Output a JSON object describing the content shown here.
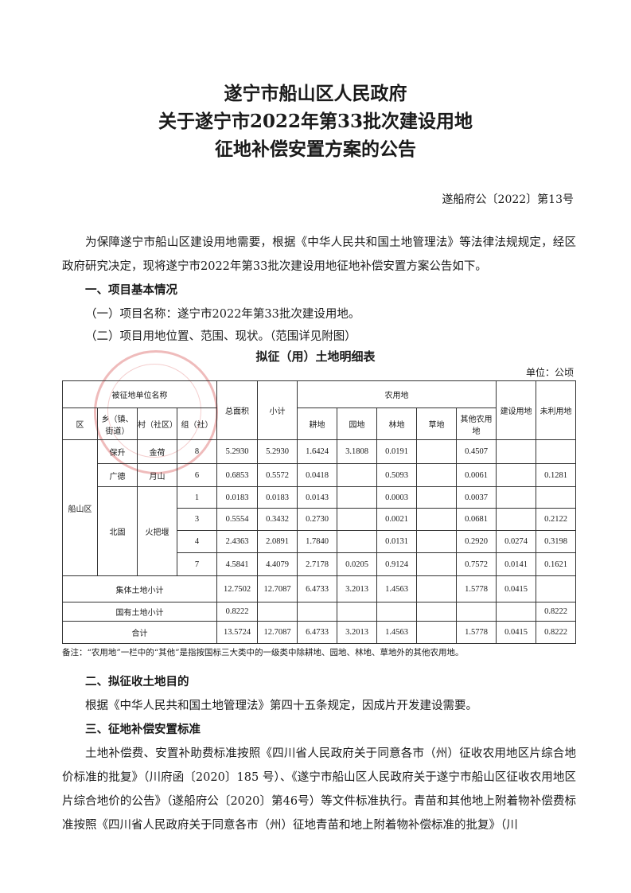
{
  "title": [
    "遂宁市船山区人民政府",
    "关于遂宁市2022年第33批次建设用地",
    "征地补偿安置方案的公告"
  ],
  "doc_number": "遂船府公〔2022〕第13号",
  "intro": "为保障遂宁市船山区建设用地需要，根据《中华人民共和国土地管理法》等法律法规规定，经区政府研究决定，现将遂宁市2022年第33批次建设用地征地补偿安置方案公告如下。",
  "section1": {
    "heading": "一、项目基本情况",
    "item1": "（一）项目名称：遂宁市2022年第33批次建设用地。",
    "item2": "（二）项目用地位置、范围、现状。（范围详见附图）"
  },
  "table": {
    "caption": "拟征（用）土地明细表",
    "unit": "单位：公顷",
    "headers": {
      "unit_name": "被征地单位名称",
      "district": "区",
      "town": "乡（镇、街道）",
      "village": "村（社区）",
      "group": "组（社）",
      "total": "总面积",
      "agri": "农用地",
      "subtotal": "小计",
      "arable": "耕地",
      "garden": "园地",
      "forest": "林地",
      "grass": "草地",
      "other_agri": "其他农用地",
      "construction": "建设用地",
      "unused": "未利用地"
    },
    "district": "船山区",
    "rows": [
      {
        "town": "保升",
        "village": "金荷",
        "group": "8",
        "total": "5.2930",
        "subtotal": "5.2930",
        "arable": "1.6424",
        "garden": "3.1808",
        "forest": "0.0191",
        "grass": "",
        "other": "0.4507",
        "construction": "",
        "unused": ""
      },
      {
        "town": "广德",
        "village": "月山",
        "group": "6",
        "total": "0.6853",
        "subtotal": "0.5572",
        "arable": "0.0418",
        "garden": "",
        "forest": "0.5093",
        "grass": "",
        "other": "0.0061",
        "construction": "",
        "unused": "0.1281"
      },
      {
        "town": "北固",
        "village": "火把堰",
        "group": "1",
        "total": "0.0183",
        "subtotal": "0.0183",
        "arable": "0.0143",
        "garden": "",
        "forest": "0.0003",
        "grass": "",
        "other": "0.0037",
        "construction": "",
        "unused": ""
      },
      {
        "group": "3",
        "total": "0.5554",
        "subtotal": "0.3432",
        "arable": "0.2730",
        "garden": "",
        "forest": "0.0021",
        "grass": "",
        "other": "0.0681",
        "construction": "",
        "unused": "0.2122"
      },
      {
        "group": "4",
        "total": "2.4363",
        "subtotal": "2.0891",
        "arable": "1.7840",
        "garden": "",
        "forest": "0.0131",
        "grass": "",
        "other": "0.2920",
        "construction": "0.0274",
        "unused": "0.3198"
      },
      {
        "group": "7",
        "total": "4.5841",
        "subtotal": "4.4079",
        "arable": "2.7178",
        "garden": "0.0205",
        "forest": "0.9124",
        "grass": "",
        "other": "0.7572",
        "construction": "0.0141",
        "unused": "0.1621"
      }
    ],
    "collective": {
      "label": "集体土地小计",
      "total": "12.7502",
      "subtotal": "12.7087",
      "arable": "6.4733",
      "garden": "3.2013",
      "forest": "1.4563",
      "grass": "",
      "other": "1.5778",
      "construction": "0.0415",
      "unused": ""
    },
    "state": {
      "label": "国有土地小计",
      "total": "0.8222",
      "subtotal": "",
      "arable": "",
      "garden": "",
      "forest": "",
      "grass": "",
      "other": "",
      "construction": "",
      "unused": "0.8222"
    },
    "sum": {
      "label": "合计",
      "total": "13.5724",
      "subtotal": "12.7087",
      "arable": "6.4733",
      "garden": "3.2013",
      "forest": "1.4563",
      "grass": "",
      "other": "1.5778",
      "construction": "0.0415",
      "unused": "0.8222"
    },
    "note": "备注：“农用地”一栏中的“其他”是指按国标三大类中的一级类中除耕地、园地、林地、草地外的其他农用地。"
  },
  "section2": {
    "heading": "二、拟征收土地目的",
    "text": "根据《中华人民共和国土地管理法》第四十五条规定，因成片开发建设需要。"
  },
  "section3": {
    "heading": "三、征地补偿安置标准",
    "text": "土地补偿费、安置补助费标准按照《四川省人民政府关于同意各市（州）征收农用地区片综合地价标准的批复》（川府函〔2020〕185 号）、《遂宁市船山区人民政府关于遂宁市船山区征收农用地区片综合地价的公告》（遂船府公〔2020〕第46号）等文件标准执行。青苗和其他地上附着物补偿费标准按照《四川省人民政府关于同意各市（州）征地青苗和地上附着物补偿标准的批复》（川"
  },
  "stamp_text": "遂宁市船山区人民政府",
  "colors": {
    "stamp": "#d23c3c",
    "text": "#1a1a1a"
  }
}
